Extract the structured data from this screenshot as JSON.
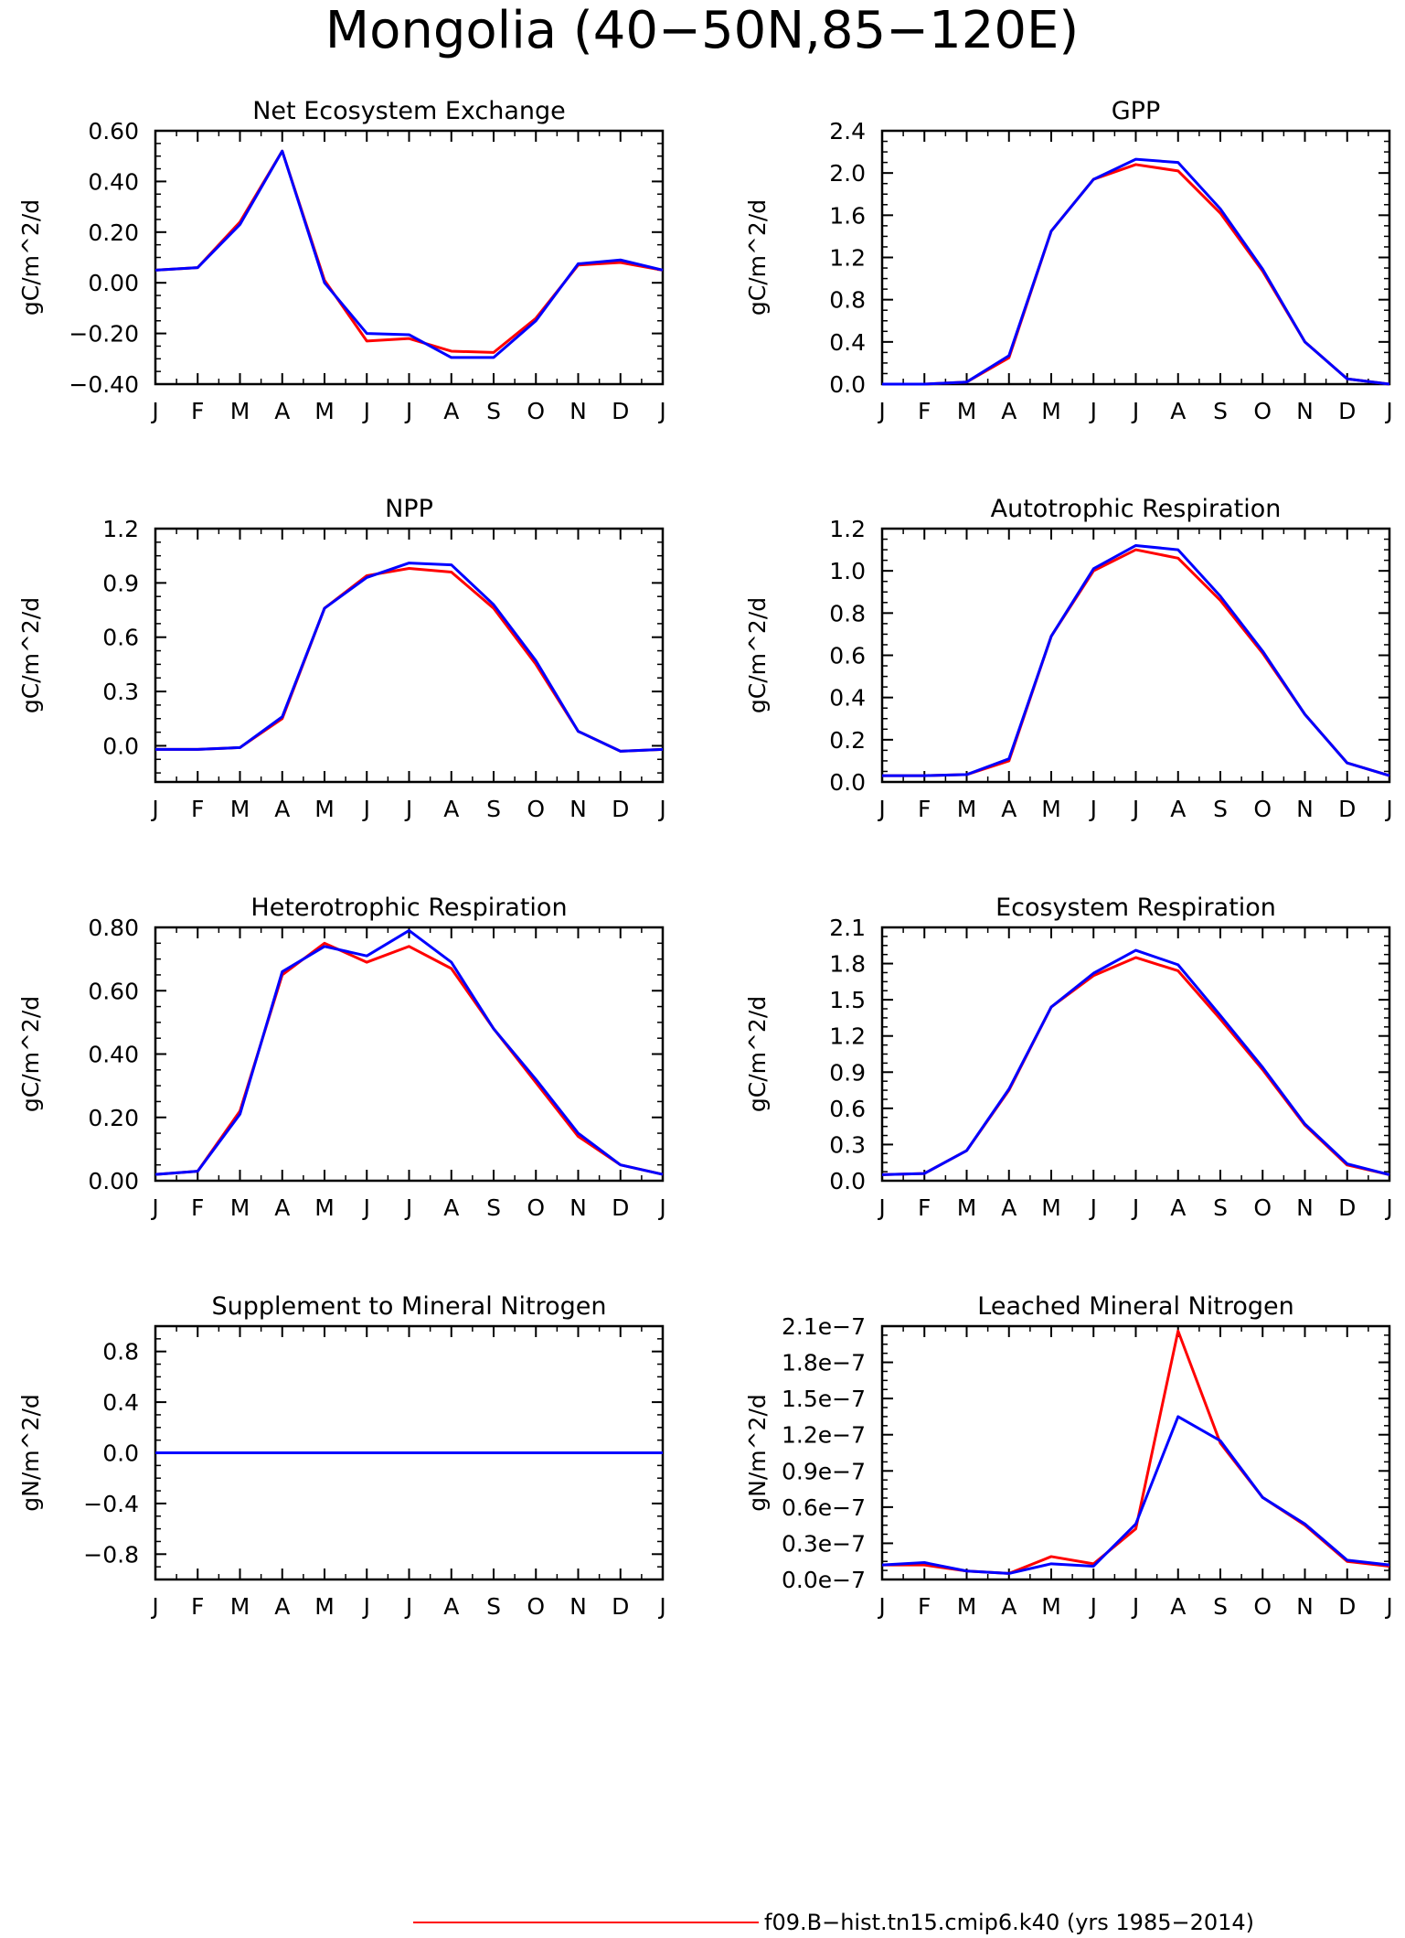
{
  "title": "Mongolia (40−50N,85−120E)",
  "months": [
    "J",
    "F",
    "M",
    "A",
    "M",
    "J",
    "J",
    "A",
    "S",
    "O",
    "N",
    "D",
    "J"
  ],
  "colors": {
    "run1": "#ff0000",
    "run2": "#0000ff"
  },
  "legend": [
    {
      "label": "f09.B−hist.tn15.cmip6.k40 (yrs 1985−2014)",
      "color": "#ff0000"
    }
  ],
  "chart_data": [
    {
      "type": "line",
      "title": "Net Ecosystem Exchange",
      "ylabel": "gC/m^2/d",
      "ylim": [
        -0.4,
        0.6
      ],
      "yticks": [
        -0.4,
        -0.2,
        0.0,
        0.2,
        0.4,
        0.6
      ],
      "ytick_labels": [
        "−0.40",
        "−0.20",
        "0.00",
        "0.20",
        "0.40",
        "0.60"
      ],
      "series": [
        {
          "color": "#ff0000",
          "values": [
            0.05,
            0.06,
            0.24,
            0.52,
            0.01,
            -0.23,
            -0.22,
            -0.27,
            -0.275,
            -0.14,
            0.07,
            0.08,
            0.05
          ]
        },
        {
          "color": "#0000ff",
          "values": [
            0.05,
            0.06,
            0.23,
            0.52,
            0.0,
            -0.2,
            -0.205,
            -0.295,
            -0.295,
            -0.15,
            0.075,
            0.09,
            0.05
          ]
        }
      ]
    },
    {
      "type": "line",
      "title": "GPP",
      "ylabel": "gC/m^2/d",
      "ylim": [
        0.0,
        2.4
      ],
      "yticks": [
        0.0,
        0.4,
        0.8,
        1.2,
        1.6,
        2.0,
        2.4
      ],
      "ytick_labels": [
        "0.0",
        "0.4",
        "0.8",
        "1.2",
        "1.6",
        "2.0",
        "2.4"
      ],
      "series": [
        {
          "color": "#ff0000",
          "values": [
            0.0,
            0.0,
            0.02,
            0.25,
            1.45,
            1.94,
            2.08,
            2.02,
            1.62,
            1.07,
            0.4,
            0.05,
            0.0
          ]
        },
        {
          "color": "#0000ff",
          "values": [
            0.0,
            0.0,
            0.02,
            0.27,
            1.45,
            1.94,
            2.13,
            2.1,
            1.66,
            1.09,
            0.4,
            0.05,
            0.0
          ]
        }
      ]
    },
    {
      "type": "line",
      "title": "NPP",
      "ylabel": "gC/m^2/d",
      "ylim": [
        -0.2,
        1.2
      ],
      "yticks": [
        0.0,
        0.3,
        0.6,
        0.9,
        1.2
      ],
      "ytick_labels": [
        "0.0",
        "0.3",
        "0.6",
        "0.9",
        "1.2"
      ],
      "series": [
        {
          "color": "#ff0000",
          "values": [
            -0.02,
            -0.02,
            -0.01,
            0.15,
            0.76,
            0.94,
            0.98,
            0.96,
            0.76,
            0.45,
            0.08,
            -0.03,
            -0.02
          ]
        },
        {
          "color": "#0000ff",
          "values": [
            -0.02,
            -0.02,
            -0.01,
            0.16,
            0.76,
            0.93,
            1.01,
            1.0,
            0.78,
            0.47,
            0.08,
            -0.03,
            -0.02
          ]
        }
      ]
    },
    {
      "type": "line",
      "title": "Autotrophic Respiration",
      "ylabel": "gC/m^2/d",
      "ylim": [
        0.0,
        1.2
      ],
      "yticks": [
        0.0,
        0.2,
        0.4,
        0.6,
        0.8,
        1.0,
        1.2
      ],
      "ytick_labels": [
        "0.0",
        "0.2",
        "0.4",
        "0.6",
        "0.8",
        "1.0",
        "1.2"
      ],
      "series": [
        {
          "color": "#ff0000",
          "values": [
            0.03,
            0.03,
            0.035,
            0.1,
            0.69,
            1.0,
            1.1,
            1.06,
            0.86,
            0.61,
            0.32,
            0.09,
            0.03
          ]
        },
        {
          "color": "#0000ff",
          "values": [
            0.03,
            0.03,
            0.035,
            0.11,
            0.69,
            1.01,
            1.12,
            1.1,
            0.88,
            0.62,
            0.32,
            0.09,
            0.03
          ]
        }
      ]
    },
    {
      "type": "line",
      "title": "Heterotrophic Respiration",
      "ylabel": "gC/m^2/d",
      "ylim": [
        0.0,
        0.8
      ],
      "yticks": [
        0.0,
        0.2,
        0.4,
        0.6,
        0.8
      ],
      "ytick_labels": [
        "0.00",
        "0.20",
        "0.40",
        "0.60",
        "0.80"
      ],
      "series": [
        {
          "color": "#ff0000",
          "values": [
            0.02,
            0.03,
            0.22,
            0.65,
            0.75,
            0.69,
            0.74,
            0.67,
            0.48,
            0.31,
            0.14,
            0.05,
            0.02
          ]
        },
        {
          "color": "#0000ff",
          "values": [
            0.02,
            0.03,
            0.21,
            0.66,
            0.74,
            0.71,
            0.79,
            0.69,
            0.48,
            0.32,
            0.15,
            0.05,
            0.02
          ]
        }
      ]
    },
    {
      "type": "line",
      "title": "Ecosystem Respiration",
      "ylabel": "gC/m^2/d",
      "ylim": [
        0.0,
        2.1
      ],
      "yticks": [
        0.0,
        0.3,
        0.6,
        0.9,
        1.2,
        1.5,
        1.8,
        2.1
      ],
      "ytick_labels": [
        "0.0",
        "0.3",
        "0.6",
        "0.9",
        "1.2",
        "1.5",
        "1.8",
        "2.1"
      ],
      "series": [
        {
          "color": "#ff0000",
          "values": [
            0.05,
            0.06,
            0.25,
            0.75,
            1.44,
            1.7,
            1.85,
            1.74,
            1.34,
            0.92,
            0.46,
            0.13,
            0.05
          ]
        },
        {
          "color": "#0000ff",
          "values": [
            0.05,
            0.06,
            0.25,
            0.76,
            1.44,
            1.72,
            1.91,
            1.79,
            1.37,
            0.94,
            0.47,
            0.14,
            0.05
          ]
        }
      ]
    },
    {
      "type": "line",
      "title": "Supplement to Mineral Nitrogen",
      "ylabel": "gN/m^2/d",
      "ylim": [
        -1.0,
        1.0
      ],
      "yticks": [
        -0.8,
        -0.4,
        0.0,
        0.4,
        0.8
      ],
      "ytick_labels": [
        "−0.8",
        "−0.4",
        "0.0",
        "0.4",
        "0.8"
      ],
      "series": [
        {
          "color": "#ff0000",
          "values": [
            0,
            0,
            0,
            0,
            0,
            0,
            0,
            0,
            0,
            0,
            0,
            0,
            0
          ]
        },
        {
          "color": "#0000ff",
          "values": [
            0,
            0,
            0,
            0,
            0,
            0,
            0,
            0,
            0,
            0,
            0,
            0,
            0
          ]
        }
      ]
    },
    {
      "type": "line",
      "title": "Leached Mineral Nitrogen",
      "ylabel": "gN/m^2/d",
      "ylim": [
        0.0,
        2.1e-07
      ],
      "yticks": [
        0.0,
        3e-08,
        6e-08,
        9e-08,
        1.2e-07,
        1.5e-07,
        1.8e-07,
        2.1e-07
      ],
      "ytick_labels": [
        "0.0e−7",
        "0.3e−7",
        "0.6e−7",
        "0.9e−7",
        "1.2e−7",
        "1.5e−7",
        "1.8e−7",
        "2.1e−7"
      ],
      "series": [
        {
          "color": "#ff0000",
          "values": [
            1.2e-08,
            1.2e-08,
            7e-09,
            5e-09,
            1.9e-08,
            1.3e-08,
            4.2e-08,
            2.06e-07,
            1.13e-07,
            6.8e-08,
            4.5e-08,
            1.5e-08,
            1.1e-08
          ]
        },
        {
          "color": "#0000ff",
          "values": [
            1.2e-08,
            1.4e-08,
            7e-09,
            5e-09,
            1.3e-08,
            1.1e-08,
            4.6e-08,
            1.35e-07,
            1.15e-07,
            6.8e-08,
            4.6e-08,
            1.6e-08,
            1.2e-08
          ]
        }
      ]
    }
  ]
}
